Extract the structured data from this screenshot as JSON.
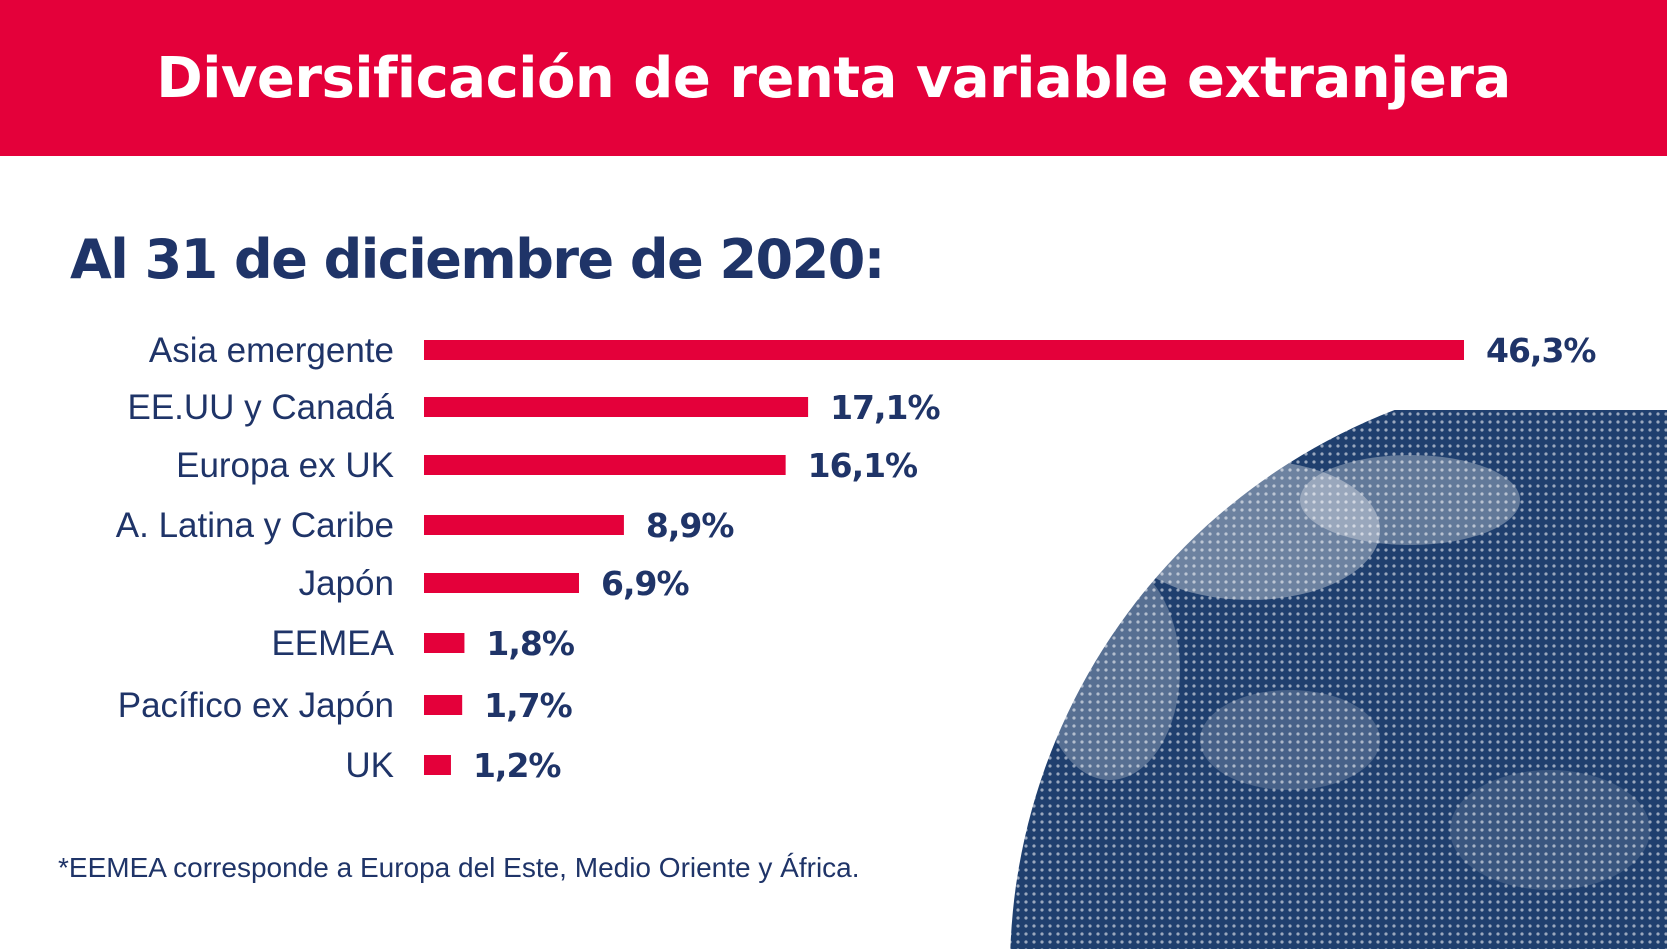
{
  "header": {
    "title": "Diversificación de renta variable extranjera"
  },
  "subtitle": "Al 31 de diciembre de 2020:",
  "footnote": "*EEMEA corresponde a Europa del Este, Medio Oriente y África.",
  "colors": {
    "accent": "#e4003a",
    "navy": "#1f3468",
    "globe": "#1f3f6e",
    "background": "#ffffff"
  },
  "chart_data": {
    "type": "bar",
    "orientation": "horizontal",
    "categories": [
      "Asia emergente",
      "EE.UU y Canadá",
      "Europa ex UK",
      "A. Latina y Caribe",
      "Japón",
      "EEMEA",
      "Pacífico ex Japón",
      "UK"
    ],
    "values": [
      46.3,
      17.1,
      16.1,
      8.9,
      6.9,
      1.8,
      1.7,
      1.2
    ],
    "labels": [
      "46,3%",
      "17,1%",
      "16,1%",
      "8,9%",
      "6,9%",
      "1,8%",
      "1,7%",
      "1,2%"
    ],
    "unit": "%",
    "grid": false,
    "legend": "none"
  }
}
